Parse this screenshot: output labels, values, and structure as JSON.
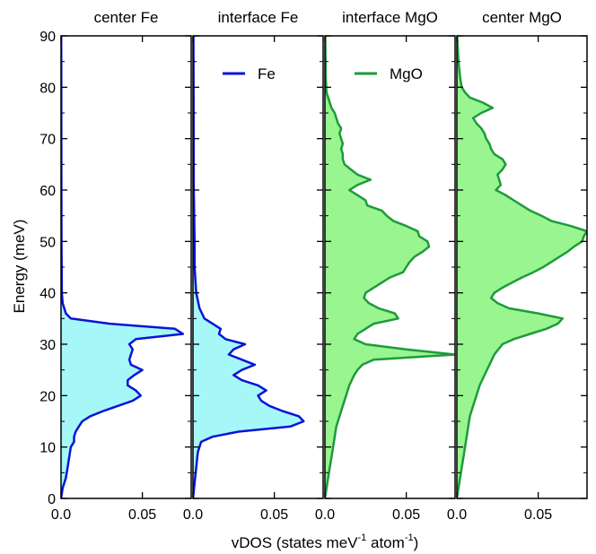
{
  "chart_data": {
    "type": "area",
    "ylabel": "Energy  (meV)",
    "xlabel_main": "vDOS  (states meV",
    "xlabel_sup1": "-1",
    "xlabel_mid": " atom",
    "xlabel_sup2": "-1",
    "xlabel_end": ")",
    "ylim": [
      0,
      90
    ],
    "xlim": [
      0,
      0.08
    ],
    "yticks": [
      0,
      10,
      20,
      30,
      40,
      50,
      60,
      70,
      80,
      90
    ],
    "xtick_labels": [
      "0.0",
      "0.05"
    ],
    "xticks": [
      0,
      0.05
    ],
    "grid": false,
    "colors": {
      "fe_line": "#0a14d6",
      "fe_fill": "#a6f7f7",
      "mgo_line": "#1e9a3c",
      "mgo_fill": "#98f58f"
    },
    "panels": [
      {
        "title": "center Fe",
        "material": "Fe",
        "curve": [
          [
            0,
            0
          ],
          [
            0.001,
            2
          ],
          [
            0.003,
            4
          ],
          [
            0.004,
            6
          ],
          [
            0.005,
            8
          ],
          [
            0.006,
            10
          ],
          [
            0.008,
            11
          ],
          [
            0.008,
            12
          ],
          [
            0.009,
            13
          ],
          [
            0.011,
            14
          ],
          [
            0.013,
            15
          ],
          [
            0.018,
            16
          ],
          [
            0.026,
            17
          ],
          [
            0.035,
            18
          ],
          [
            0.044,
            19
          ],
          [
            0.049,
            20
          ],
          [
            0.046,
            21
          ],
          [
            0.041,
            22
          ],
          [
            0.041,
            23
          ],
          [
            0.045,
            24
          ],
          [
            0.05,
            25
          ],
          [
            0.043,
            26
          ],
          [
            0.042,
            27
          ],
          [
            0.043,
            28
          ],
          [
            0.044,
            29
          ],
          [
            0.042,
            30
          ],
          [
            0.046,
            31
          ],
          [
            0.075,
            32
          ],
          [
            0.07,
            33
          ],
          [
            0.03,
            34
          ],
          [
            0.006,
            35
          ],
          [
            0.003,
            36
          ],
          [
            0.002,
            37
          ],
          [
            0.001,
            38
          ],
          [
            0.0005,
            40
          ],
          [
            0.0003,
            50
          ],
          [
            0.0002,
            60
          ],
          [
            0.0001,
            90
          ]
        ]
      },
      {
        "title": "interface Fe",
        "material": "Fe",
        "legend": "Fe",
        "curve": [
          [
            0,
            0
          ],
          [
            0.001,
            3
          ],
          [
            0.002,
            6
          ],
          [
            0.003,
            9
          ],
          [
            0.005,
            11
          ],
          [
            0.012,
            12
          ],
          [
            0.028,
            13
          ],
          [
            0.06,
            14
          ],
          [
            0.068,
            15
          ],
          [
            0.065,
            16
          ],
          [
            0.055,
            17
          ],
          [
            0.047,
            18
          ],
          [
            0.042,
            19
          ],
          [
            0.04,
            20
          ],
          [
            0.045,
            21
          ],
          [
            0.04,
            22
          ],
          [
            0.03,
            23
          ],
          [
            0.025,
            24
          ],
          [
            0.03,
            25
          ],
          [
            0.038,
            26
          ],
          [
            0.03,
            27
          ],
          [
            0.022,
            28
          ],
          [
            0.025,
            29
          ],
          [
            0.032,
            30
          ],
          [
            0.02,
            31
          ],
          [
            0.016,
            32
          ],
          [
            0.017,
            33
          ],
          [
            0.012,
            34
          ],
          [
            0.007,
            35
          ],
          [
            0.004,
            37
          ],
          [
            0.002,
            40
          ],
          [
            0.001,
            45
          ],
          [
            0.001,
            50
          ],
          [
            0.0005,
            60
          ],
          [
            0.0003,
            90
          ]
        ]
      },
      {
        "title": "interface MgO",
        "material": "MgO",
        "legend": "MgO",
        "curve": [
          [
            0,
            0
          ],
          [
            0.001,
            2
          ],
          [
            0.002,
            4
          ],
          [
            0.003,
            6
          ],
          [
            0.004,
            8
          ],
          [
            0.005,
            10
          ],
          [
            0.006,
            12
          ],
          [
            0.007,
            14
          ],
          [
            0.009,
            16
          ],
          [
            0.011,
            18
          ],
          [
            0.013,
            20
          ],
          [
            0.015,
            22
          ],
          [
            0.018,
            24
          ],
          [
            0.02,
            25
          ],
          [
            0.023,
            26
          ],
          [
            0.03,
            27
          ],
          [
            0.08,
            28
          ],
          [
            0.05,
            29
          ],
          [
            0.025,
            30
          ],
          [
            0.018,
            31
          ],
          [
            0.02,
            32
          ],
          [
            0.025,
            33
          ],
          [
            0.03,
            34
          ],
          [
            0.045,
            35
          ],
          [
            0.043,
            36
          ],
          [
            0.033,
            37
          ],
          [
            0.027,
            38
          ],
          [
            0.024,
            39
          ],
          [
            0.025,
            40
          ],
          [
            0.03,
            41
          ],
          [
            0.035,
            42
          ],
          [
            0.04,
            43
          ],
          [
            0.048,
            44
          ],
          [
            0.05,
            45
          ],
          [
            0.052,
            46
          ],
          [
            0.055,
            47
          ],
          [
            0.06,
            48
          ],
          [
            0.064,
            49
          ],
          [
            0.063,
            50
          ],
          [
            0.058,
            51
          ],
          [
            0.057,
            52
          ],
          [
            0.05,
            53
          ],
          [
            0.042,
            54
          ],
          [
            0.038,
            55
          ],
          [
            0.035,
            56
          ],
          [
            0.026,
            57
          ],
          [
            0.025,
            58
          ],
          [
            0.02,
            59
          ],
          [
            0.015,
            60
          ],
          [
            0.02,
            61
          ],
          [
            0.028,
            62
          ],
          [
            0.02,
            63
          ],
          [
            0.016,
            64
          ],
          [
            0.012,
            65
          ],
          [
            0.011,
            66
          ],
          [
            0.011,
            67
          ],
          [
            0.01,
            68
          ],
          [
            0.011,
            69
          ],
          [
            0.01,
            70
          ],
          [
            0.009,
            71
          ],
          [
            0.01,
            72
          ],
          [
            0.008,
            73
          ],
          [
            0.007,
            74
          ],
          [
            0.006,
            75
          ],
          [
            0.004,
            76
          ],
          [
            0.003,
            77
          ],
          [
            0.002,
            78
          ],
          [
            0.001,
            79
          ],
          [
            0.0005,
            82
          ],
          [
            0.0002,
            90
          ]
        ]
      },
      {
        "title": "center MgO",
        "material": "MgO",
        "curve": [
          [
            0,
            0
          ],
          [
            0.001,
            2
          ],
          [
            0.002,
            4
          ],
          [
            0.003,
            6
          ],
          [
            0.004,
            8
          ],
          [
            0.005,
            10
          ],
          [
            0.006,
            12
          ],
          [
            0.007,
            14
          ],
          [
            0.008,
            16
          ],
          [
            0.01,
            18
          ],
          [
            0.012,
            20
          ],
          [
            0.014,
            22
          ],
          [
            0.017,
            24
          ],
          [
            0.02,
            26
          ],
          [
            0.023,
            28
          ],
          [
            0.028,
            30
          ],
          [
            0.035,
            31
          ],
          [
            0.045,
            32
          ],
          [
            0.055,
            33
          ],
          [
            0.062,
            34
          ],
          [
            0.065,
            35
          ],
          [
            0.05,
            36
          ],
          [
            0.032,
            37
          ],
          [
            0.025,
            38
          ],
          [
            0.021,
            39
          ],
          [
            0.023,
            40
          ],
          [
            0.028,
            41
          ],
          [
            0.034,
            42
          ],
          [
            0.04,
            43
          ],
          [
            0.047,
            44
          ],
          [
            0.053,
            45
          ],
          [
            0.058,
            46
          ],
          [
            0.063,
            47
          ],
          [
            0.068,
            48
          ],
          [
            0.072,
            49
          ],
          [
            0.077,
            50
          ],
          [
            0.078,
            51
          ],
          [
            0.08,
            52
          ],
          [
            0.07,
            53
          ],
          [
            0.058,
            54
          ],
          [
            0.052,
            55
          ],
          [
            0.045,
            56
          ],
          [
            0.04,
            57
          ],
          [
            0.035,
            58
          ],
          [
            0.03,
            59
          ],
          [
            0.024,
            60
          ],
          [
            0.027,
            61
          ],
          [
            0.026,
            62
          ],
          [
            0.025,
            63
          ],
          [
            0.028,
            64
          ],
          [
            0.03,
            65
          ],
          [
            0.028,
            66
          ],
          [
            0.023,
            67
          ],
          [
            0.021,
            68
          ],
          [
            0.02,
            69
          ],
          [
            0.018,
            70
          ],
          [
            0.017,
            71
          ],
          [
            0.015,
            72
          ],
          [
            0.012,
            73
          ],
          [
            0.01,
            74
          ],
          [
            0.015,
            75
          ],
          [
            0.022,
            76
          ],
          [
            0.016,
            77
          ],
          [
            0.008,
            78
          ],
          [
            0.005,
            79
          ],
          [
            0.003,
            80
          ],
          [
            0.002,
            82
          ],
          [
            0.001,
            85
          ],
          [
            0.0005,
            88
          ],
          [
            0.0002,
            90
          ]
        ]
      }
    ]
  }
}
